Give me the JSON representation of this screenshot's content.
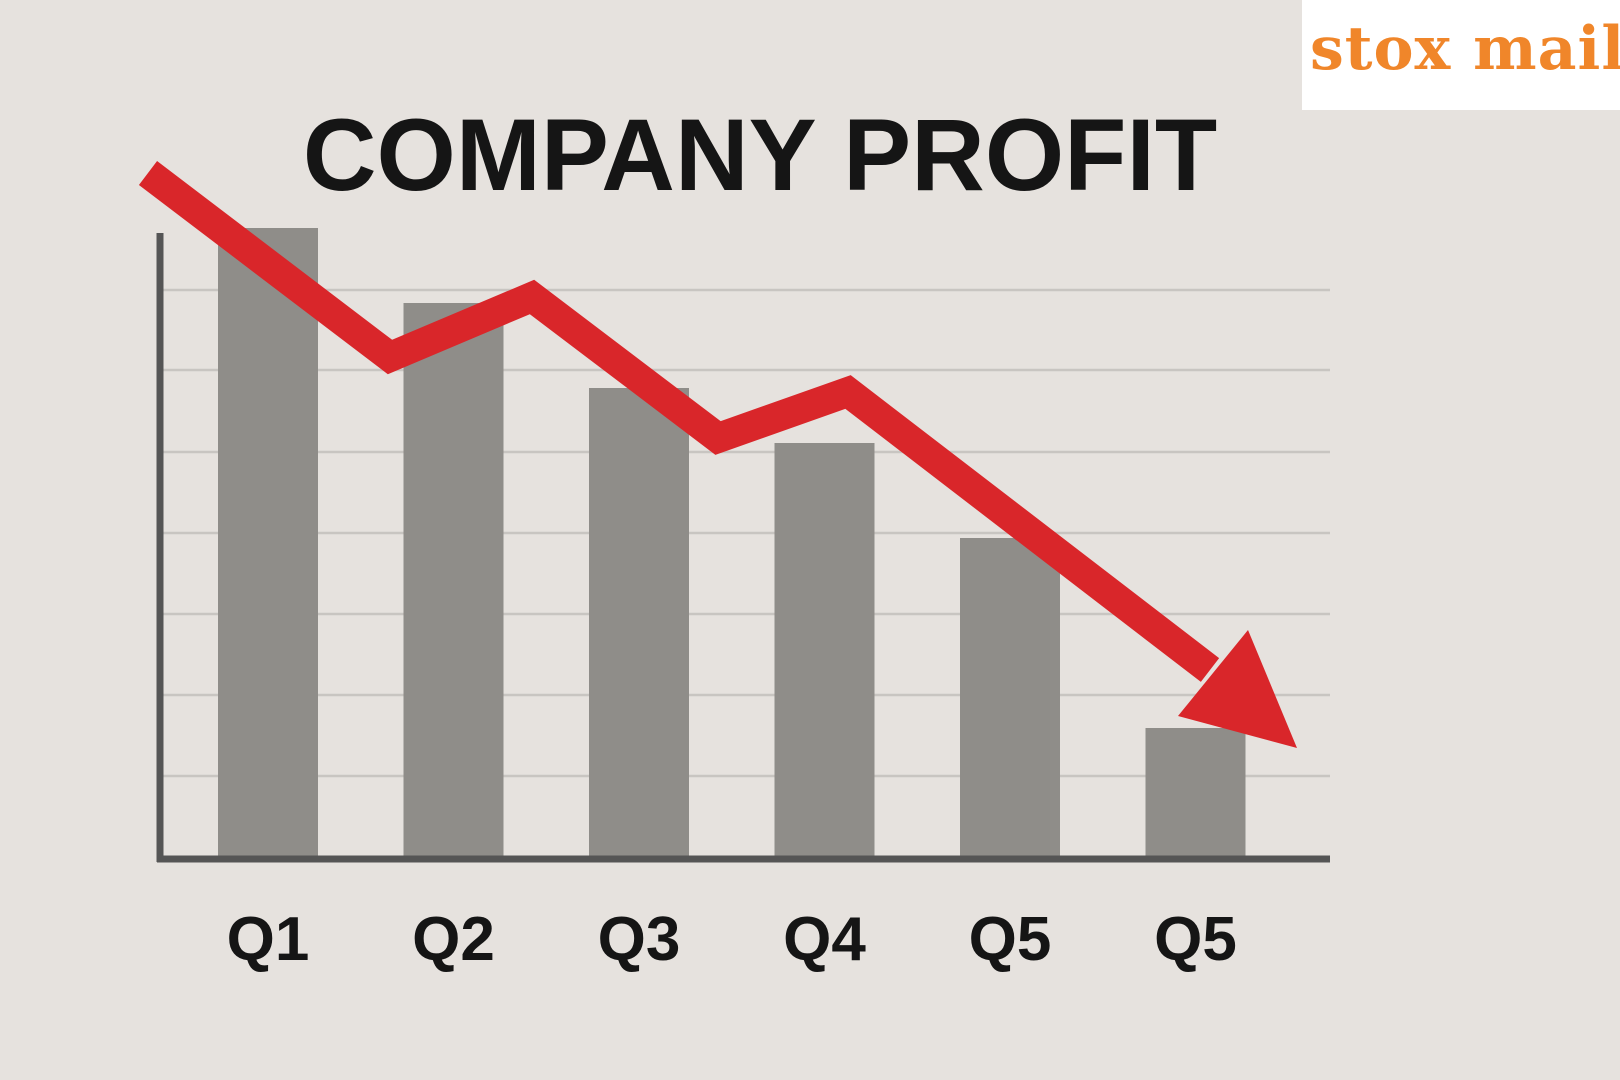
{
  "brand": {
    "name": "stox mail",
    "color": "#f0862a"
  },
  "chart_data": {
    "type": "bar",
    "title": "COMPANY PROFIT",
    "categories": [
      "Q1",
      "Q2",
      "Q3",
      "Q4",
      "Q5",
      "Q5"
    ],
    "values": [
      63,
      55.5,
      47,
      41.5,
      32,
      13
    ],
    "ylim": [
      0,
      77
    ],
    "xlabel": "",
    "ylabel": "",
    "grid": true,
    "trend_arrow": {
      "direction": "down",
      "color": "#d9262a"
    },
    "colors": {
      "bar": "#8f8d89",
      "axis": "#555555",
      "grid": "#c8c5c1",
      "text": "#151515"
    }
  }
}
